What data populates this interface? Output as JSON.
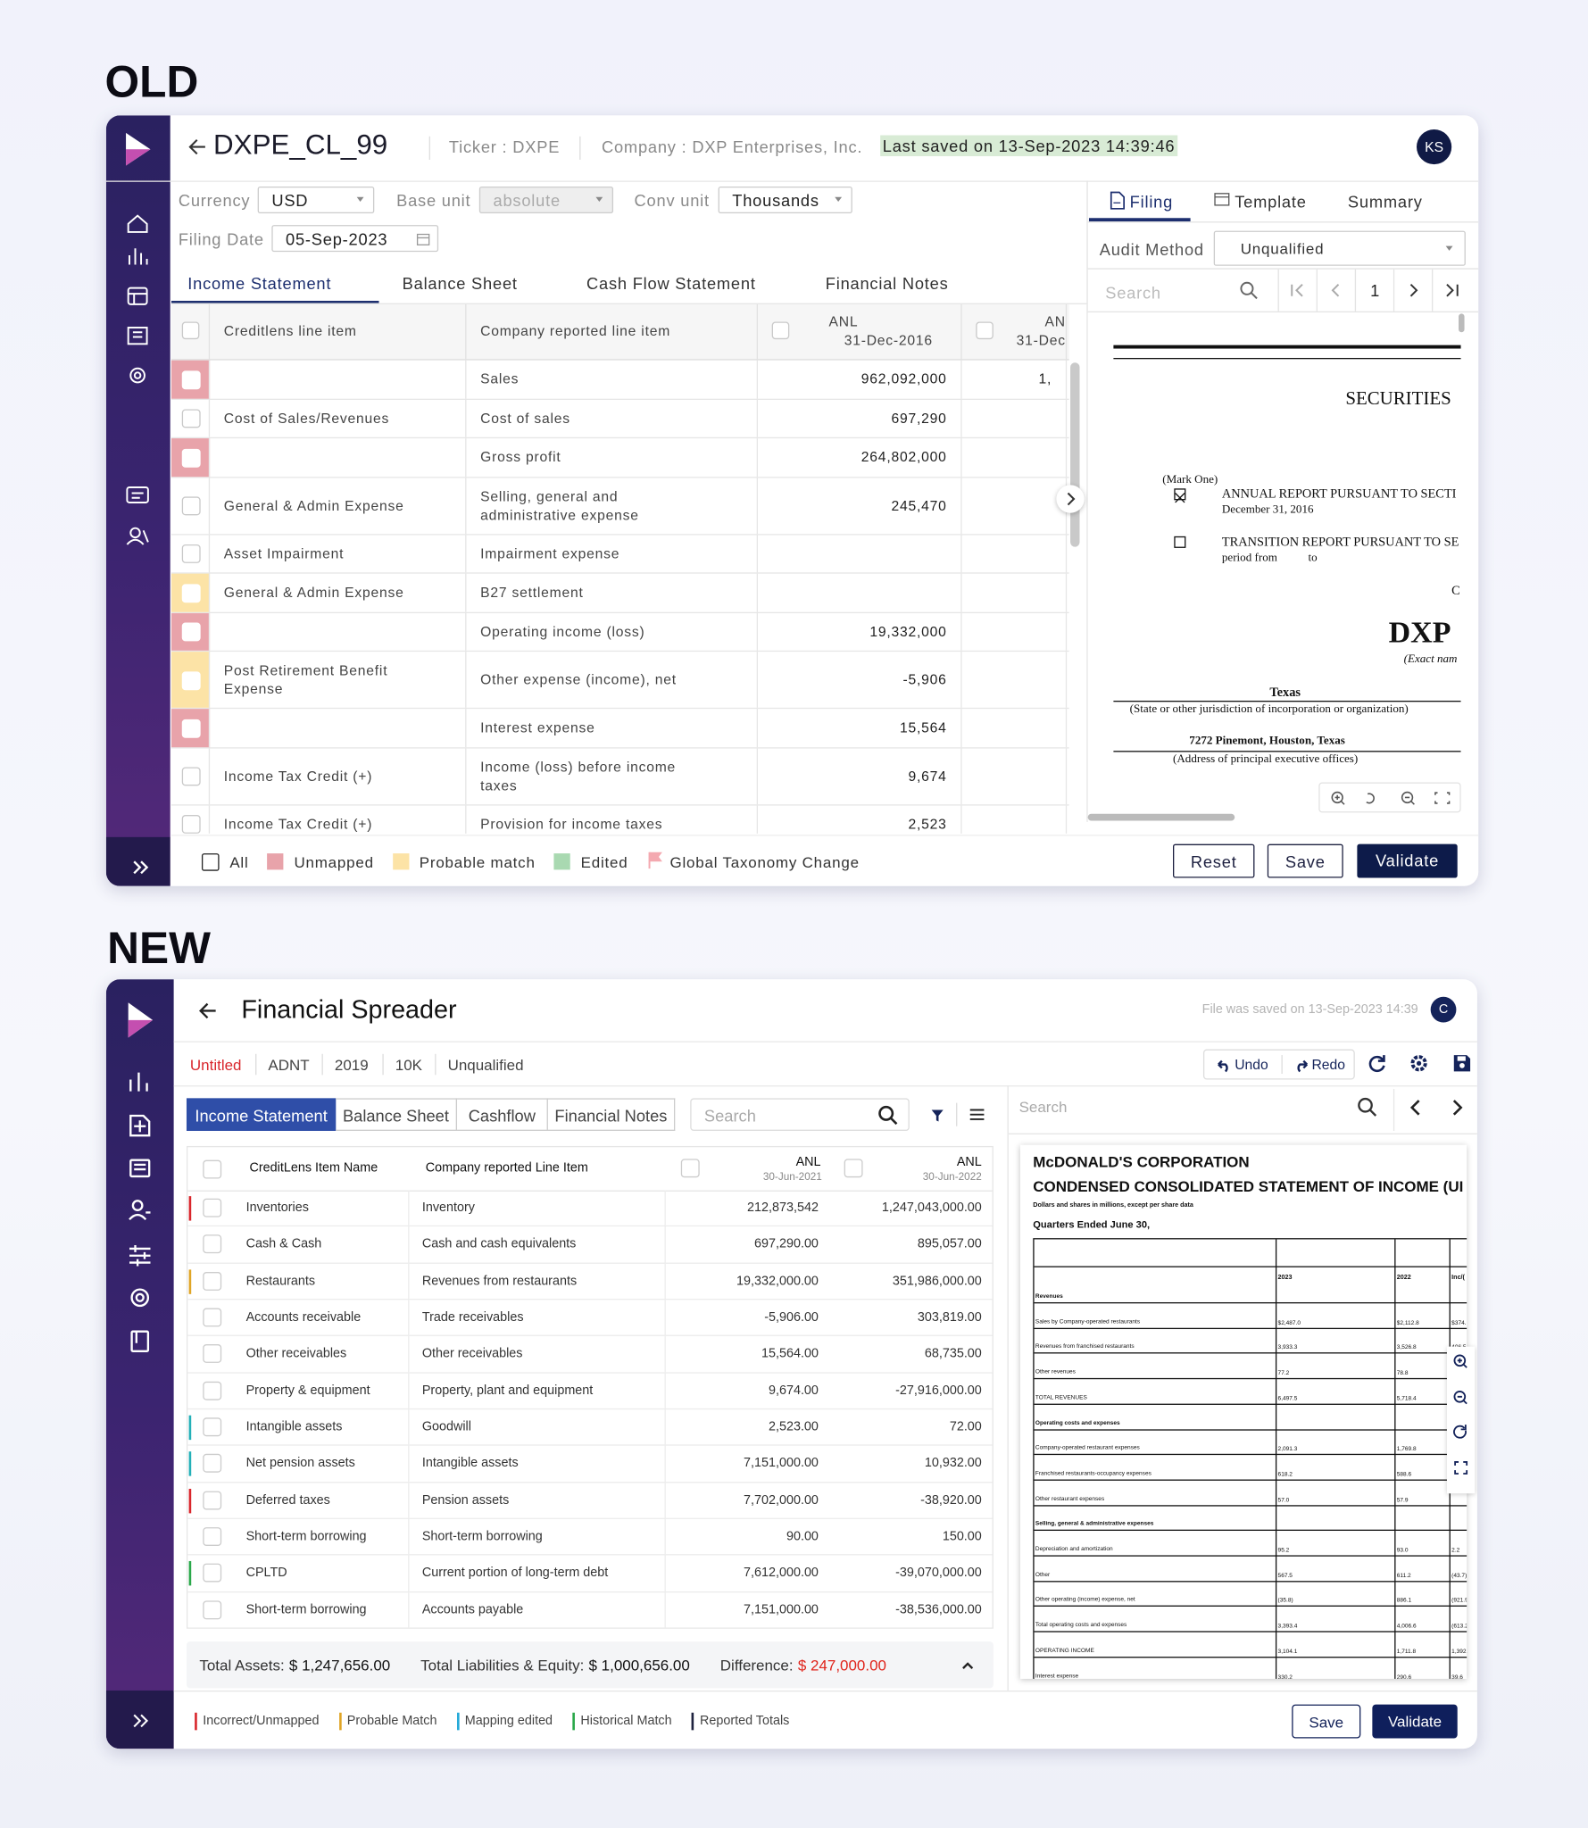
{
  "sections": {
    "old": "OLD",
    "new": "NEW"
  },
  "old": {
    "title": "DXPE_CL_99",
    "ticker": "Ticker : DXPE",
    "company": "Company : DXP Enterprises, Inc.",
    "saved": "Last saved on 13-Sep-2023 14:39:46",
    "avatar": "KS",
    "fields": [
      {
        "label": "Currency",
        "value": "USD"
      },
      {
        "label": "Base unit",
        "value": "absolute"
      },
      {
        "label": "Conv unit",
        "value": "Thousands"
      },
      {
        "label": "Filing Date",
        "value": "05-Sep-2023"
      }
    ],
    "tabs": [
      "Income Statement",
      "Balance Sheet",
      "Cash Flow Statement",
      "Financial Notes"
    ],
    "table": {
      "headers": [
        "Creditlens line item",
        "Company reported line item",
        [
          "ANL",
          "31-Dec-2016"
        ],
        [
          "AN",
          "31-Dec"
        ]
      ],
      "rows": [
        [
          "#e8a3aa",
          null,
          "Sales",
          "962,092,000",
          "1,"
        ],
        [
          null,
          "Cost of Sales/Revenues",
          "Cost of sales",
          "697,290",
          null
        ],
        [
          "#e8a3aa",
          null,
          "Gross profit",
          "264,802,000",
          null
        ],
        [
          null,
          "General & Admin Expense",
          "Selling, general and administrative expense",
          "245,470",
          null
        ],
        [
          null,
          "Asset Impairment",
          "Impairment expense",
          null,
          null
        ],
        [
          "#fce3a6",
          "General & Admin Expense",
          "B27 settlement",
          null,
          null
        ],
        [
          "#e8a3aa",
          null,
          "Operating income (loss)",
          "19,332,000",
          null
        ],
        [
          "#fce3a6",
          "Post Retirement Benefit Expense",
          "Other expense (income), net",
          "-5,906",
          null
        ],
        [
          "#e8a3aa",
          null,
          "Interest expense",
          "15,564",
          null
        ],
        [
          null,
          "Income Tax Credit (+)",
          "Income (loss) before income taxes",
          "9,674",
          null
        ],
        [
          null,
          "Income Tax Credit (+)",
          "Provision for income taxes",
          "2,523",
          null
        ]
      ]
    },
    "panel_tabs": [
      "Filing",
      "Template",
      "Summary"
    ],
    "audit": {
      "label": "Audit Method",
      "value": "Unqualified"
    },
    "search": "Search",
    "page": "1",
    "document": [
      "SECURITIES",
      "(Mark One)",
      "ANNUAL REPORT PURSUANT TO SECTI",
      "December 31, 2016",
      "TRANSITION REPORT PURSUANT TO SE",
      "period from",
      "to",
      "C",
      "DXP",
      "(Exact nam",
      "Texas",
      "(State or other jurisdiction of incorporation or organization)",
      "7272 Pinemont, Houston, Texas",
      "(Address of principal executive offices)"
    ],
    "legend": [
      {
        "name": "All"
      },
      {
        "name": "Unmapped",
        "color": "#e8a3aa"
      },
      {
        "name": "Probable match",
        "color": "#fce3a6"
      },
      {
        "name": "Edited",
        "color": "#a9d9b1"
      },
      {
        "name": "Global Taxonomy Change",
        "color": "#f4a9b0"
      }
    ],
    "buttons": [
      "Reset",
      "Save",
      "Validate"
    ]
  },
  "new": {
    "title": "Financial Spreader",
    "saved": "File was saved on 13-Sep-2023 14:39",
    "avatar": "C",
    "info": [
      "Untitled",
      "ADNT",
      "2019",
      "10K",
      "Unqualified"
    ],
    "actions": [
      "Undo",
      "Redo"
    ],
    "tabs": [
      "Income Statement",
      "Balance Sheet",
      "Cashflow",
      "Financial Notes"
    ],
    "search": "Search",
    "table": {
      "headers": [
        "CreditLens Item Name",
        "Company reported Line Item",
        [
          "ANL",
          "30-Jun-2021"
        ],
        [
          "ANL",
          "30-Jun-2022"
        ]
      ],
      "rows": [
        [
          "#d9262c",
          "Inventories",
          "Inventory",
          "212,873,542",
          "1,247,043,000.00"
        ],
        [
          null,
          "Cash & Cash",
          "Cash and cash equivalents",
          "697,290.00",
          "895,057.00"
        ],
        [
          "#e0a526",
          "Restaurants",
          "Revenues from restaurants",
          "19,332,000.00",
          "351,986,000.00"
        ],
        [
          null,
          "Accounts receivable",
          "Trade receivables",
          "-5,906.00",
          "303,819.00"
        ],
        [
          null,
          "Other receivables",
          "Other receivables",
          "15,564.00",
          "68,735.00"
        ],
        [
          null,
          "Property & equipment",
          "Property, plant and equipment",
          "9,674.00",
          "-27,916,000.00"
        ],
        [
          "#23b0b8",
          "Intangible assets",
          "Goodwill",
          "2,523.00",
          "72.00"
        ],
        [
          "#23b0b8",
          "Net pension assets",
          "Intangible assets",
          "7,151,000.00",
          "10,932.00"
        ],
        [
          "#d9262c",
          "Deferred taxes",
          "Pension assets",
          "7,702,000.00",
          "-38,920.00"
        ],
        [
          null,
          "Short-term borrowing",
          "Short-term borrowing",
          "90.00",
          "150.00"
        ],
        [
          "#2aa84a",
          "CPLTD",
          "Current portion of long-term debt",
          "7,612,000.00",
          "-39,070,000.00"
        ],
        [
          null,
          "Short-term borrowing",
          "Accounts payable",
          "7,151,000.00",
          "-38,536,000.00"
        ]
      ]
    },
    "totals": [
      {
        "label": "Total Assets:",
        "value": "$ 1,247,656.00"
      },
      {
        "label": "Total Liabilities & Equity:",
        "value": "$ 1,000,656.00"
      },
      {
        "label": "Difference:",
        "value": "$ 247,000.00",
        "color": "#e0241b"
      }
    ],
    "document": {
      "company": "McDONALD'S CORPORATION",
      "title": "CONDENSED CONSOLIDATED STATEMENT OF INCOME (UI",
      "note": "Dollars and shares in millions, except per share data",
      "period": "Quarters Ended June 30,",
      "columns": [
        "2023",
        "2022",
        "Inc/("
      ],
      "rows": [
        [
          "Revenues",
          null,
          null,
          null
        ],
        [
          "Sales by Company-operated restaurants",
          "$2,487.0",
          "$2,112.8",
          "$374."
        ],
        [
          "Revenues from franchised restaurants",
          "3,933.3",
          "3,526.8",
          "406.5"
        ],
        [
          "Other revenues",
          "77.2",
          "78.8",
          null
        ],
        [
          "TOTAL REVENUES",
          "6,497.5",
          "5,718.4",
          null
        ],
        [
          "Operating costs and expenses",
          null,
          null,
          null
        ],
        [
          "Company-operated restaurant expenses",
          "2,091.3",
          "1,769.8",
          null
        ],
        [
          "Franchised restaurants-occupancy expenses",
          "618.2",
          "588.6",
          null
        ],
        [
          "Other restaurant expenses",
          "57.0",
          "57.9",
          null
        ],
        [
          "Selling, general & administrative expenses",
          null,
          null,
          null
        ],
        [
          "Depreciation and amortization",
          "95.2",
          "93.0",
          "2.2"
        ],
        [
          "Other",
          "567.5",
          "611.2",
          "(43.7)"
        ],
        [
          "Other operating (income) expense, net",
          "(35.8)",
          "886.1",
          "(921.9)"
        ],
        [
          "Total operating costs and expenses",
          "3,393.4",
          "4,006.6",
          "(613.2)"
        ],
        [
          "OPERATING INCOME",
          "3,104.1",
          "1,711.8",
          "1,392."
        ],
        [
          "Interest expense",
          "330.2",
          "290.6",
          "39.6"
        ]
      ]
    },
    "legend": [
      {
        "name": "Incorrect/Unmapped",
        "color": "#d9262c"
      },
      {
        "name": "Probable Match",
        "color": "#e0a526"
      },
      {
        "name": "Mapping edited",
        "color": "#23a8d8"
      },
      {
        "name": "Historical Match",
        "color": "#2aa84a"
      },
      {
        "name": "Reported Totals",
        "color": "#1f2340"
      }
    ],
    "buttons": [
      "Save",
      "Validate"
    ]
  }
}
